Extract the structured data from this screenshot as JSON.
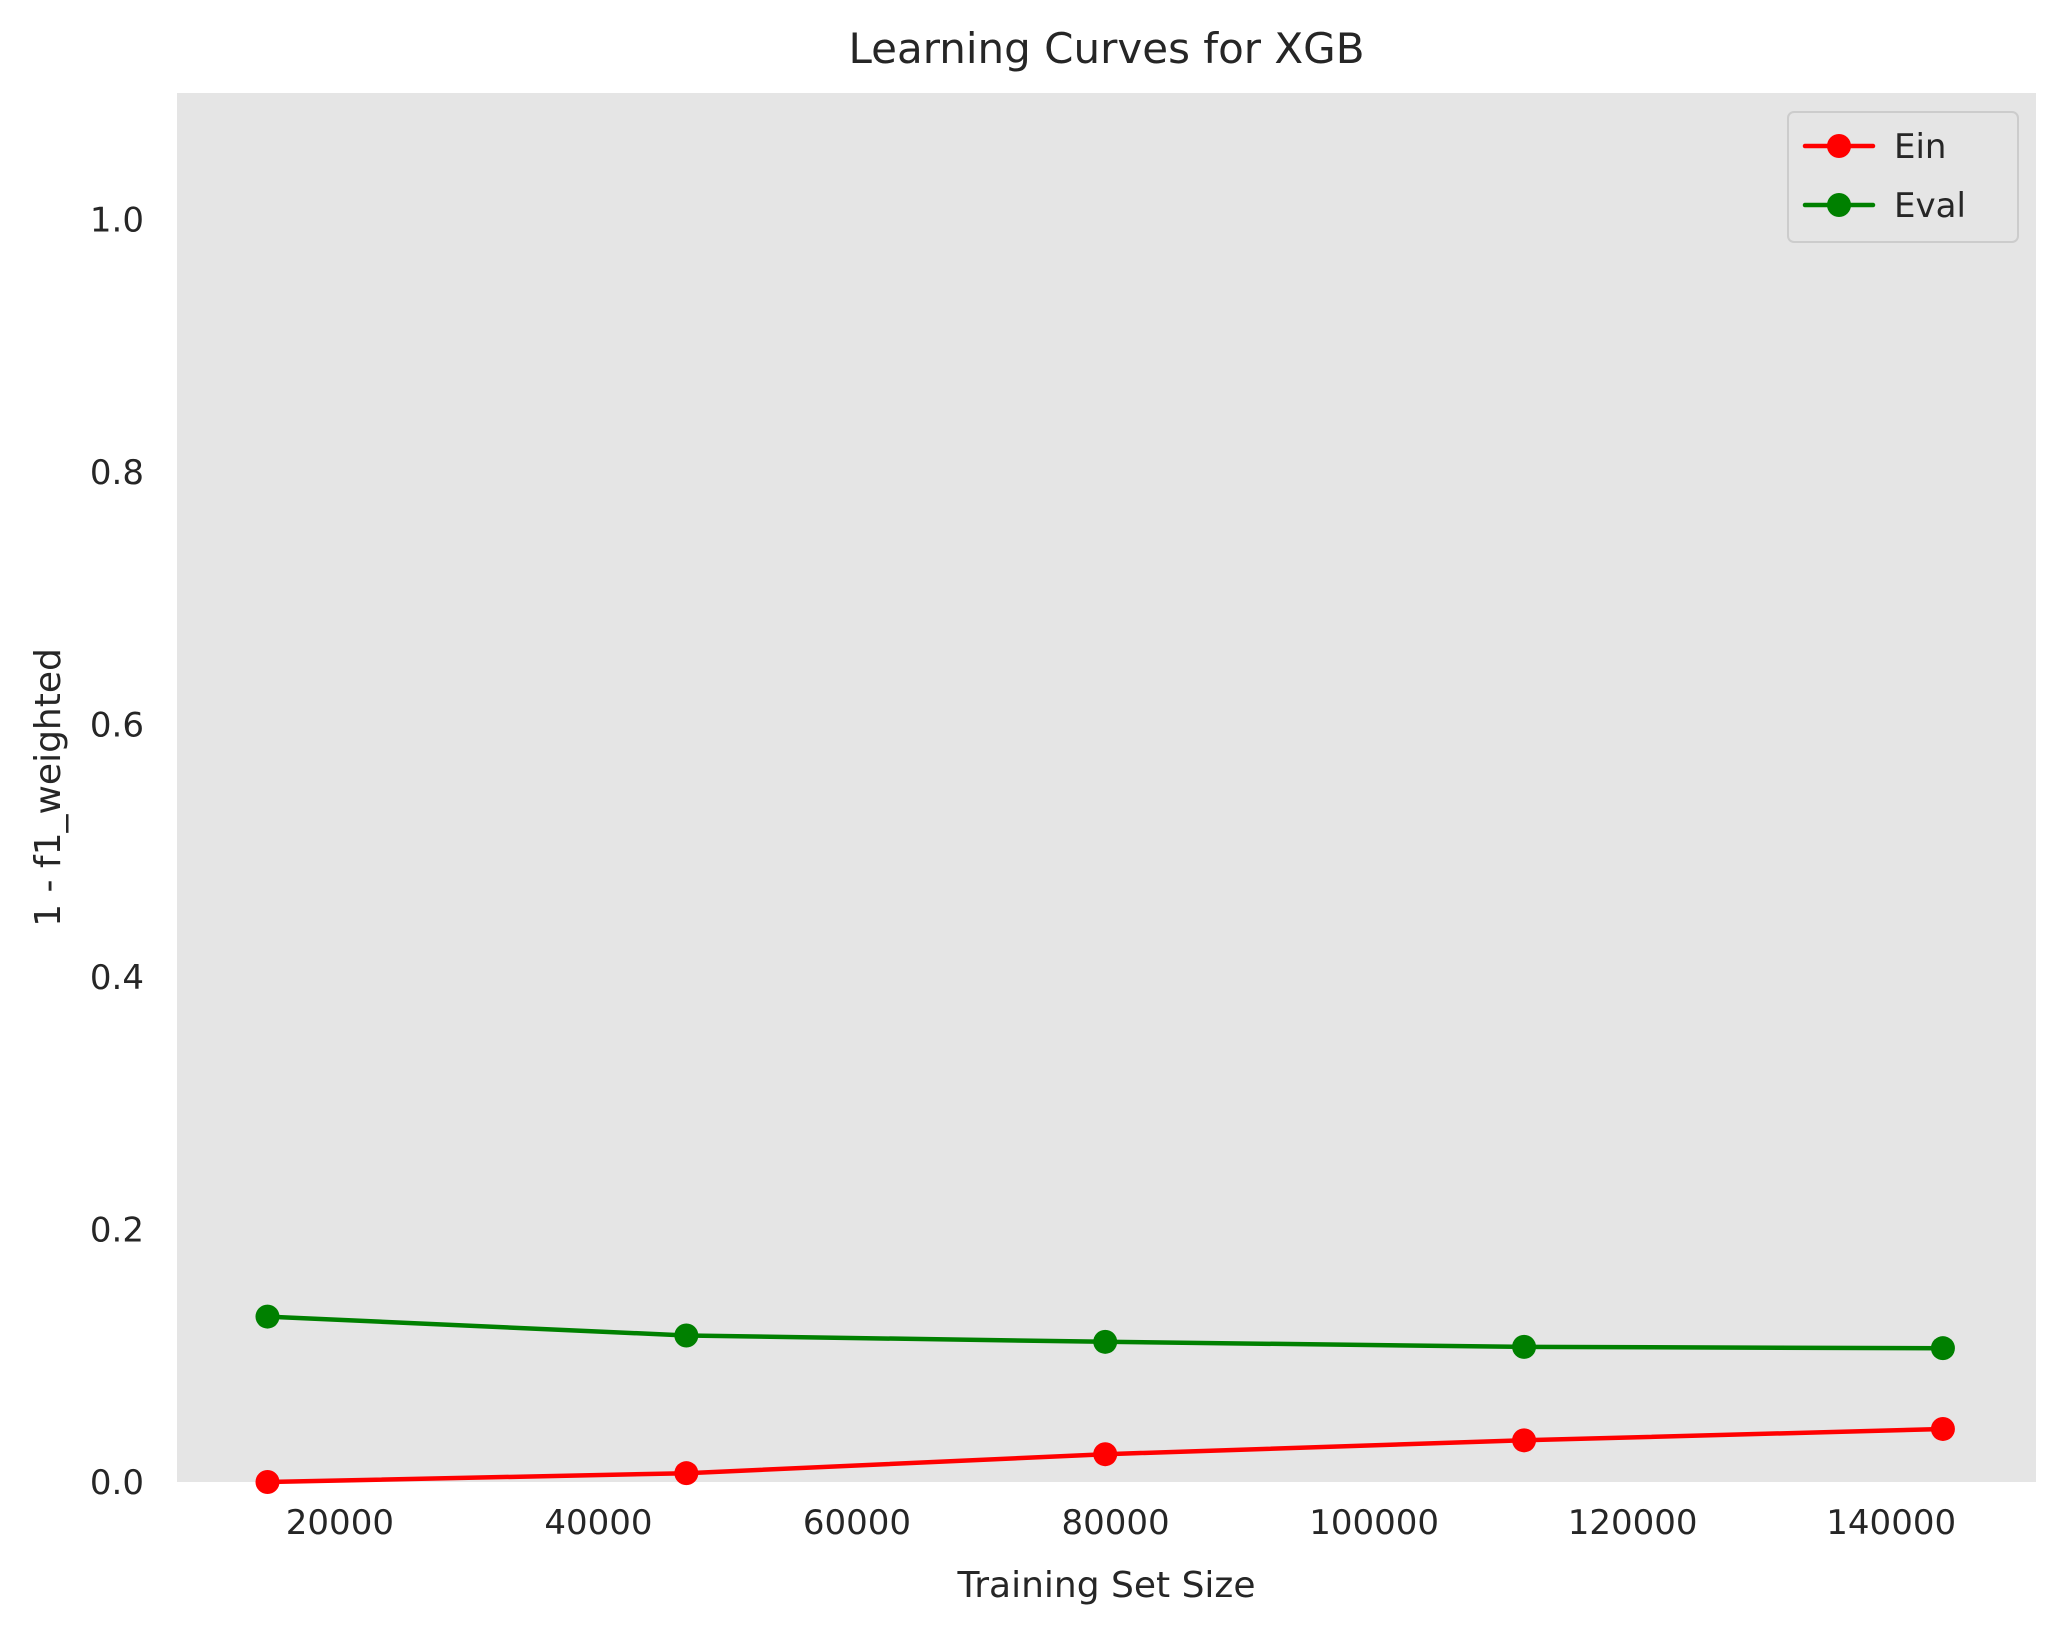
{
  "chart_data": {
    "type": "line",
    "title": "Learning Curves for XGB",
    "xlabel": "Training Set Size",
    "ylabel": "1 - f1_weighted",
    "x": [
      14400,
      46800,
      79200,
      111600,
      144000
    ],
    "xlim": [
      7400,
      151200
    ],
    "ylim": [
      0,
      1.1
    ],
    "xticks": [
      20000,
      40000,
      60000,
      80000,
      100000,
      120000,
      140000
    ],
    "xtick_labels": [
      "20000",
      "40000",
      "60000",
      "80000",
      "100000",
      "120000",
      "140000"
    ],
    "yticks": [
      0.0,
      0.2,
      0.4,
      0.6,
      0.8,
      1.0
    ],
    "ytick_labels": [
      "0.0",
      "0.2",
      "0.4",
      "0.6",
      "0.8",
      "1.0"
    ],
    "grid": false,
    "legend_position": "top-right",
    "series": [
      {
        "name": "Ein",
        "color": "#ff0000",
        "values": [
          0.0,
          0.007,
          0.022,
          0.033,
          0.042
        ]
      },
      {
        "name": "Eval",
        "color": "#008000",
        "values": [
          0.131,
          0.116,
          0.111,
          0.107,
          0.106
        ]
      }
    ],
    "plot_background": "#e5e5e5"
  }
}
